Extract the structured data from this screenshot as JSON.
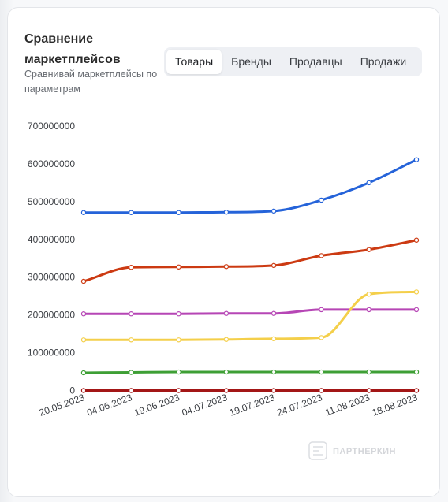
{
  "header": {
    "title": "Сравнение маркетплейсов",
    "subtitle": "Сравнивай маркетплейсы по параметрам"
  },
  "tabs": [
    {
      "label": "Товары",
      "active": true
    },
    {
      "label": "Бренды",
      "active": false
    },
    {
      "label": "Продавцы",
      "active": false
    },
    {
      "label": "Продажи",
      "active": false
    }
  ],
  "watermark": "ПАРТНЕРКИН",
  "chart_data": {
    "type": "line",
    "title": "",
    "xlabel": "",
    "ylabel": "",
    "x": [
      "20.05.2023",
      "04.06.2023",
      "19.06.2023",
      "04.07.2023",
      "19.07.2023",
      "24.07.2023",
      "11.08.2023",
      "18.08.2023"
    ],
    "ylim": [
      0,
      700000000
    ],
    "yticks": [
      "0",
      "100000000",
      "200000000",
      "300000000",
      "400000000",
      "500000000",
      "600000000",
      "700000000"
    ],
    "ytick_values": [
      0,
      100000000,
      200000000,
      300000000,
      400000000,
      500000000,
      600000000,
      700000000
    ],
    "grid": false,
    "legend": "none",
    "series": [
      {
        "color": "#2563d9",
        "values": [
          471000000,
          471000000,
          471000000,
          472000000,
          475000000,
          504000000,
          550000000,
          611000000
        ]
      },
      {
        "color": "#cc3a12",
        "values": [
          289000000,
          326000000,
          327000000,
          328000000,
          331000000,
          357000000,
          373000000,
          398000000
        ]
      },
      {
        "color": "#b646b5",
        "values": [
          203000000,
          203000000,
          203000000,
          204000000,
          204000000,
          214000000,
          214000000,
          214000000
        ]
      },
      {
        "color": "#f4cf4a",
        "values": [
          134000000,
          134000000,
          134000000,
          135000000,
          137000000,
          140000000,
          255000000,
          261000000
        ]
      },
      {
        "color": "#3e9f35",
        "values": [
          47000000,
          48000000,
          49000000,
          49000000,
          49000000,
          49000000,
          49000000,
          49000000
        ]
      },
      {
        "color": "#a31616",
        "values": [
          0,
          0,
          0,
          0,
          0,
          0,
          0,
          0
        ]
      }
    ]
  }
}
